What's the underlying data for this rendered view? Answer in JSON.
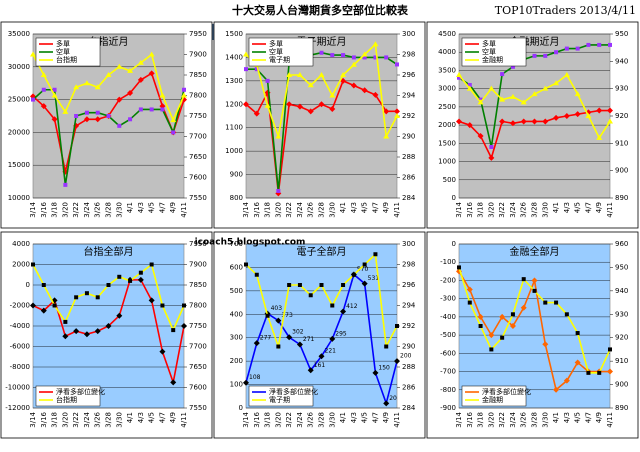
{
  "header": {
    "title": "十大交易人台灣期貨多空部位比較表",
    "source": "TOP10Traders 2013/4/11",
    "watermark": "icoach5.blogspot.com"
  },
  "chart_data": [
    {
      "type": "line",
      "title": "台指近月",
      "title_color": "#000000",
      "background": "#c0c0c0",
      "categories": [
        "3/14",
        "3/16",
        "3/18",
        "3/20",
        "3/22",
        "3/24",
        "3/26",
        "3/28",
        "3/30",
        "4/1",
        "4/3",
        "4/5",
        "4/7",
        "4/9",
        "4/11"
      ],
      "ylim": [
        10000,
        35000
      ],
      "yticks": [
        10000,
        15000,
        20000,
        25000,
        30000,
        35000
      ],
      "y2lim": [
        7550,
        7950
      ],
      "y2ticks": [
        7550,
        7600,
        7650,
        7700,
        7750,
        7800,
        7850,
        7900,
        7950
      ],
      "legend": "top-left",
      "series": [
        {
          "name": "多單",
          "color": "#ff0000",
          "marker_color": "#ff0000",
          "values": [
            25500,
            24000,
            22000,
            14000,
            21000,
            22000,
            22000,
            22500,
            25000,
            26000,
            28000,
            29000,
            24000,
            20000,
            25000
          ]
        },
        {
          "name": "空單",
          "color": "#008000",
          "marker_color": "#9933ff",
          "values": [
            25000,
            26500,
            26500,
            12000,
            22500,
            23000,
            23000,
            22500,
            21000,
            22000,
            23500,
            23500,
            23500,
            20000,
            26500
          ]
        },
        {
          "name": "台指期",
          "color": "#ffff00",
          "marker_color": "#ffff00",
          "axis": "y2",
          "values": [
            7900,
            7850,
            7800,
            7760,
            7820,
            7830,
            7820,
            7850,
            7870,
            7860,
            7880,
            7900,
            7800,
            7740,
            7800
          ]
        }
      ]
    },
    {
      "type": "line",
      "title": "電子期近月",
      "title_color": "#000000",
      "background": "#c0c0c0",
      "categories": [
        "3/14",
        "3/16",
        "3/18",
        "3/20",
        "3/22",
        "3/24",
        "3/26",
        "3/28",
        "3/30",
        "4/1",
        "4/3",
        "4/5",
        "4/7",
        "4/9",
        "4/11"
      ],
      "ylim": [
        800,
        1500
      ],
      "yticks": [
        800,
        900,
        1000,
        1100,
        1200,
        1300,
        1400,
        1500
      ],
      "y2lim": [
        284,
        300
      ],
      "y2ticks": [
        284,
        286,
        288,
        290,
        292,
        294,
        296,
        298,
        300
      ],
      "legend": "top-left",
      "series": [
        {
          "name": "多單",
          "color": "#ff0000",
          "marker_color": "#ff0000",
          "values": [
            1200,
            1160,
            1250,
            820,
            1200,
            1190,
            1170,
            1200,
            1180,
            1300,
            1280,
            1260,
            1240,
            1170,
            1170
          ]
        },
        {
          "name": "空單",
          "color": "#008000",
          "marker_color": "#9933ff",
          "values": [
            1350,
            1350,
            1300,
            830,
            1380,
            1410,
            1410,
            1420,
            1410,
            1410,
            1400,
            1400,
            1400,
            1400,
            1370
          ]
        },
        {
          "name": "電子期",
          "color": "#ffff00",
          "marker_color": "#ffff00",
          "axis": "y2",
          "values": [
            298,
            297,
            293,
            290,
            296,
            296,
            295,
            296,
            294,
            296,
            297,
            298,
            299,
            290,
            292
          ]
        }
      ]
    },
    {
      "type": "line",
      "title": "金融期近月",
      "title_color": "#000000",
      "background": "#c0c0c0",
      "categories": [
        "3/14",
        "3/16",
        "3/18",
        "3/20",
        "3/22",
        "3/24",
        "3/26",
        "3/28",
        "3/30",
        "4/1",
        "4/3",
        "4/5",
        "4/7",
        "4/9",
        "4/11"
      ],
      "ylim": [
        0,
        4500
      ],
      "yticks": [
        0,
        500,
        1000,
        1500,
        2000,
        2500,
        3000,
        3500,
        4000,
        4500
      ],
      "y2lim": [
        890,
        950
      ],
      "y2ticks": [
        890,
        900,
        910,
        920,
        930,
        940,
        950
      ],
      "legend": "top-left",
      "series": [
        {
          "name": "多單",
          "color": "#ff0000",
          "marker_color": "#ff0000",
          "values": [
            2100,
            2000,
            1700,
            1100,
            2100,
            2050,
            2100,
            2100,
            2100,
            2200,
            2250,
            2300,
            2350,
            2400,
            2400
          ]
        },
        {
          "name": "空單",
          "color": "#008000",
          "marker_color": "#9933ff",
          "values": [
            3300,
            3100,
            2700,
            1400,
            3400,
            3600,
            3800,
            3900,
            3900,
            4000,
            4100,
            4100,
            4200,
            4200,
            4200
          ]
        },
        {
          "name": "金融期",
          "color": "#ffff00",
          "marker_color": "#ffff00",
          "axis": "y2",
          "values": [
            935,
            930,
            925,
            930,
            926,
            927,
            925,
            928,
            930,
            932,
            935,
            928,
            920,
            912,
            918
          ]
        }
      ]
    },
    {
      "type": "line",
      "title": "台指全部月",
      "title_color": "#ff0000",
      "background": "#99ccff",
      "categories": [
        "3/14",
        "3/16",
        "3/18",
        "3/20",
        "3/22",
        "3/24",
        "3/26",
        "3/28",
        "3/30",
        "4/1",
        "4/3",
        "4/5",
        "4/7",
        "4/9",
        "4/11"
      ],
      "ylim": [
        -12000,
        4000
      ],
      "yticks": [
        -12000,
        -10000,
        -8000,
        -6000,
        -4000,
        -2000,
        0,
        2000,
        4000
      ],
      "y2lim": [
        7550,
        7950
      ],
      "y2ticks": [
        7550,
        7600,
        7650,
        7700,
        7750,
        7800,
        7850,
        7900,
        7950
      ],
      "legend": "bottom-left",
      "series": [
        {
          "name": "淨看多部位變化",
          "color": "#ff0000",
          "marker_color": "#000000",
          "values": [
            -2000,
            -2500,
            -1500,
            -5000,
            -4500,
            -4800,
            -4500,
            -4000,
            -3000,
            500,
            500,
            -1500,
            -6500,
            -9500,
            -4000
          ]
        },
        {
          "name": "台指期",
          "color": "#ffff00",
          "marker_color": "#000000",
          "axis": "y2",
          "values": [
            7900,
            7850,
            7800,
            7760,
            7820,
            7830,
            7820,
            7850,
            7870,
            7860,
            7880,
            7900,
            7800,
            7740,
            7800
          ]
        }
      ]
    },
    {
      "type": "line",
      "title": "電子全部月",
      "title_color": "#0000ff",
      "background": "#99ccff",
      "categories": [
        "3/14",
        "3/16",
        "3/18",
        "3/20",
        "3/22",
        "3/24",
        "3/26",
        "3/28",
        "3/30",
        "4/1",
        "4/3",
        "4/5",
        "4/7",
        "4/9",
        "4/11"
      ],
      "ylim": [
        0,
        700
      ],
      "yticks": [
        0,
        100,
        200,
        300,
        400,
        500,
        600,
        700
      ],
      "y2lim": [
        284,
        300
      ],
      "y2ticks": [
        284,
        286,
        288,
        290,
        292,
        294,
        296,
        298,
        300
      ],
      "legend": "bottom-left",
      "series": [
        {
          "name": "淨看多部位變化",
          "color": "#0000ff",
          "marker_color": "#000000",
          "data_labels": true,
          "values": [
            108,
            277,
            403,
            373,
            302,
            271,
            161,
            221,
            295,
            412,
            570,
            531,
            150,
            20,
            200
          ]
        },
        {
          "name": "電子期",
          "color": "#ffff00",
          "marker_color": "#000000",
          "axis": "y2",
          "values": [
            298,
            297,
            293,
            290,
            296,
            296,
            295,
            296,
            294,
            296,
            297,
            298,
            299,
            290,
            292
          ]
        }
      ]
    },
    {
      "type": "line",
      "title": "金融全部月",
      "title_color": "#ff0000",
      "background": "#99ccff",
      "categories": [
        "3/14",
        "3/16",
        "3/18",
        "3/20",
        "3/22",
        "3/24",
        "3/26",
        "3/28",
        "3/30",
        "4/1",
        "4/3",
        "4/5",
        "4/7",
        "4/9",
        "4/11"
      ],
      "ylim": [
        -900,
        0
      ],
      "yticks": [
        -900,
        -800,
        -700,
        -600,
        -500,
        -400,
        -300,
        -200,
        -100,
        0
      ],
      "y2lim": [
        890,
        960
      ],
      "y2ticks": [
        890,
        900,
        910,
        920,
        930,
        940,
        950,
        960
      ],
      "legend": "bottom-left",
      "series": [
        {
          "name": "淨看多部位變化",
          "color": "#ff6600",
          "marker_color": "#ff6600",
          "values": [
            -150,
            -250,
            -400,
            -500,
            -400,
            -450,
            -350,
            -200,
            -550,
            -800,
            -750,
            -650,
            -700,
            -700,
            -700
          ]
        },
        {
          "name": "金融期",
          "color": "#ffff00",
          "marker_color": "#000000",
          "axis": "y2",
          "values": [
            950,
            935,
            925,
            915,
            920,
            930,
            945,
            940,
            935,
            935,
            930,
            922,
            905,
            905,
            915
          ]
        }
      ]
    }
  ]
}
